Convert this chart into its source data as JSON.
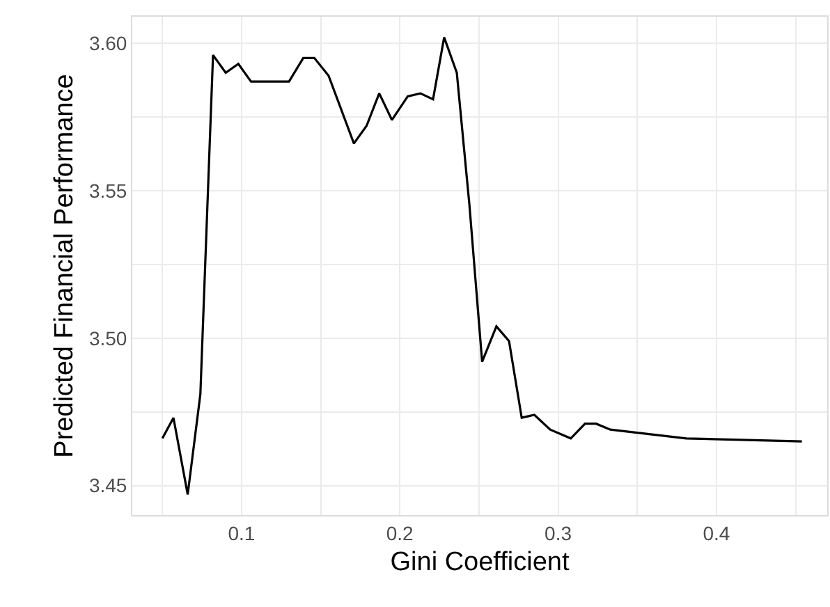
{
  "chart_data": {
    "type": "line",
    "xlabel": "Gini Coefficient",
    "ylabel": "Predicted Financial Performance",
    "x": [
      0.05,
      0.057,
      0.066,
      0.074,
      0.082,
      0.09,
      0.098,
      0.106,
      0.13,
      0.139,
      0.146,
      0.155,
      0.171,
      0.179,
      0.187,
      0.195,
      0.205,
      0.213,
      0.221,
      0.228,
      0.236,
      0.244,
      0.252,
      0.261,
      0.269,
      0.277,
      0.285,
      0.295,
      0.308,
      0.317,
      0.324,
      0.333,
      0.365,
      0.381,
      0.454
    ],
    "series": [
      {
        "color": "#000000",
        "values": [
          3.466,
          3.473,
          3.447,
          3.481,
          3.596,
          3.59,
          3.593,
          3.587,
          3.587,
          3.595,
          3.595,
          3.589,
          3.566,
          3.572,
          3.583,
          3.574,
          3.582,
          3.583,
          3.581,
          3.602,
          3.59,
          3.545,
          3.492,
          3.504,
          3.499,
          3.473,
          3.474,
          3.469,
          3.466,
          3.471,
          3.471,
          3.469,
          3.467,
          3.466,
          3.465
        ]
      }
    ],
    "xlim": [
      0.031,
      0.47
    ],
    "ylim": [
      3.44,
      3.609
    ],
    "xticks": [
      {
        "value": 0.05,
        "label": null
      },
      {
        "value": 0.1,
        "label": "0.1"
      },
      {
        "value": 0.15,
        "label": null
      },
      {
        "value": 0.2,
        "label": "0.2"
      },
      {
        "value": 0.25,
        "label": null
      },
      {
        "value": 0.3,
        "label": "0.3"
      },
      {
        "value": 0.35,
        "label": null
      },
      {
        "value": 0.4,
        "label": "0.4"
      },
      {
        "value": 0.45,
        "label": null
      }
    ],
    "yticks": [
      {
        "value": 3.45,
        "label": "3.45"
      },
      {
        "value": 3.475,
        "label": null
      },
      {
        "value": 3.5,
        "label": "3.50"
      },
      {
        "value": 3.525,
        "label": null
      },
      {
        "value": 3.55,
        "label": "3.55"
      },
      {
        "value": 3.575,
        "label": null
      },
      {
        "value": 3.6,
        "label": "3.60"
      }
    ],
    "grid": true,
    "legend": false,
    "marker": "none",
    "line_style": "solid"
  }
}
